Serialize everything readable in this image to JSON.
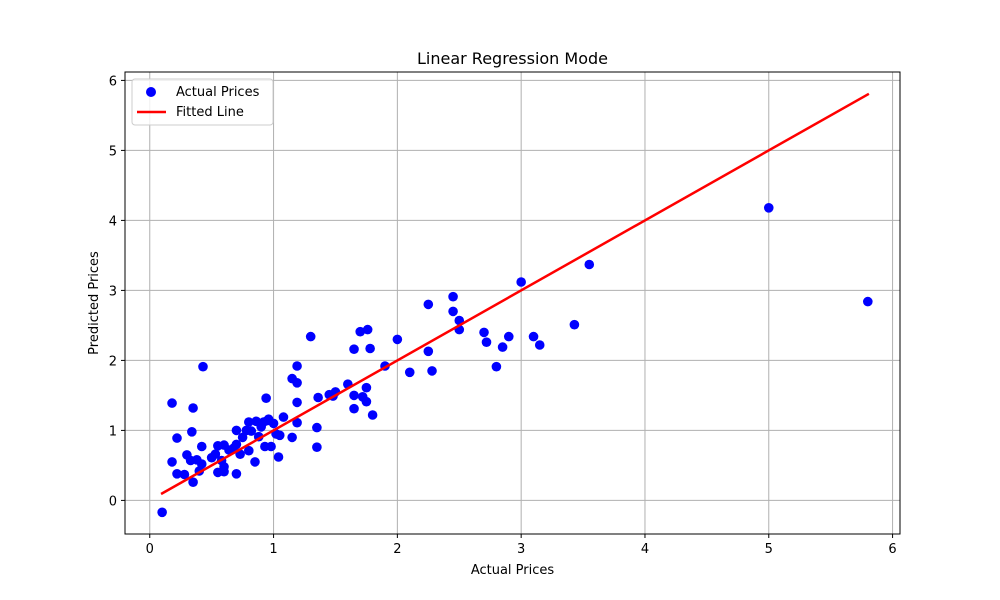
{
  "chart_data": {
    "type": "scatter",
    "title": "Linear Regression Mode",
    "xlabel": "Actual Prices",
    "ylabel": "Predicted Prices",
    "xlim": [
      -0.2,
      6.06
    ],
    "ylim": [
      -0.48,
      6.12
    ],
    "xticks": [
      0,
      1,
      2,
      3,
      4,
      5,
      6
    ],
    "yticks": [
      0,
      1,
      2,
      3,
      4,
      5,
      6
    ],
    "grid": true,
    "legend": "upper-left",
    "series": [
      {
        "name": "Actual Prices",
        "kind": "scatter",
        "color": "#0000ff",
        "points": [
          [
            0.1,
            -0.17
          ],
          [
            0.18,
            1.39
          ],
          [
            0.18,
            0.55
          ],
          [
            0.22,
            0.38
          ],
          [
            0.22,
            0.89
          ],
          [
            0.28,
            0.37
          ],
          [
            0.3,
            0.65
          ],
          [
            0.33,
            0.57
          ],
          [
            0.34,
            0.98
          ],
          [
            0.35,
            1.32
          ],
          [
            0.35,
            0.26
          ],
          [
            0.38,
            0.58
          ],
          [
            0.4,
            0.42
          ],
          [
            0.42,
            0.77
          ],
          [
            0.42,
            0.52
          ],
          [
            0.43,
            1.91
          ],
          [
            0.5,
            0.61
          ],
          [
            0.53,
            0.66
          ],
          [
            0.55,
            0.78
          ],
          [
            0.55,
            0.4
          ],
          [
            0.58,
            0.57
          ],
          [
            0.6,
            0.79
          ],
          [
            0.6,
            0.48
          ],
          [
            0.6,
            0.41
          ],
          [
            0.64,
            0.72
          ],
          [
            0.68,
            0.75
          ],
          [
            0.7,
            0.8
          ],
          [
            0.7,
            0.38
          ],
          [
            0.7,
            1.0
          ],
          [
            0.73,
            0.66
          ],
          [
            0.75,
            0.9
          ],
          [
            0.78,
            1.0
          ],
          [
            0.8,
            1.12
          ],
          [
            0.8,
            0.71
          ],
          [
            0.82,
            0.99
          ],
          [
            0.85,
            0.55
          ],
          [
            0.86,
            1.13
          ],
          [
            0.88,
            0.91
          ],
          [
            0.9,
            1.05
          ],
          [
            0.92,
            1.12
          ],
          [
            0.93,
            0.77
          ],
          [
            0.94,
            1.46
          ],
          [
            0.95,
            1.14
          ],
          [
            0.96,
            1.16
          ],
          [
            0.98,
            0.77
          ],
          [
            1.0,
            1.1
          ],
          [
            1.02,
            0.95
          ],
          [
            1.04,
            0.62
          ],
          [
            1.05,
            0.93
          ],
          [
            1.08,
            1.19
          ],
          [
            1.15,
            1.74
          ],
          [
            1.15,
            0.9
          ],
          [
            1.19,
            1.11
          ],
          [
            1.19,
            1.4
          ],
          [
            1.19,
            1.92
          ],
          [
            1.19,
            1.68
          ],
          [
            1.3,
            2.34
          ],
          [
            1.35,
            1.04
          ],
          [
            1.35,
            0.76
          ],
          [
            1.36,
            1.47
          ],
          [
            1.45,
            1.51
          ],
          [
            1.48,
            1.49
          ],
          [
            1.5,
            1.55
          ],
          [
            1.6,
            1.66
          ],
          [
            1.65,
            1.31
          ],
          [
            1.65,
            2.16
          ],
          [
            1.65,
            1.5
          ],
          [
            1.7,
            2.41
          ],
          [
            1.72,
            1.48
          ],
          [
            1.75,
            1.61
          ],
          [
            1.75,
            1.41
          ],
          [
            1.76,
            2.44
          ],
          [
            1.78,
            2.17
          ],
          [
            1.8,
            1.22
          ],
          [
            1.9,
            1.92
          ],
          [
            2.0,
            2.3
          ],
          [
            2.1,
            1.83
          ],
          [
            2.25,
            2.8
          ],
          [
            2.25,
            2.13
          ],
          [
            2.28,
            1.85
          ],
          [
            2.45,
            2.7
          ],
          [
            2.45,
            2.91
          ],
          [
            2.5,
            2.57
          ],
          [
            2.5,
            2.44
          ],
          [
            2.7,
            2.4
          ],
          [
            2.72,
            2.26
          ],
          [
            2.8,
            1.91
          ],
          [
            2.85,
            2.19
          ],
          [
            2.9,
            2.34
          ],
          [
            3.0,
            3.12
          ],
          [
            3.1,
            2.34
          ],
          [
            3.15,
            2.22
          ],
          [
            3.43,
            2.51
          ],
          [
            3.55,
            3.37
          ],
          [
            5.0,
            4.18
          ],
          [
            5.8,
            2.84
          ]
        ]
      },
      {
        "name": "Fitted Line",
        "kind": "line",
        "color": "#ff0000",
        "points": [
          [
            0.1,
            0.1
          ],
          [
            5.8,
            5.8
          ]
        ]
      }
    ]
  }
}
